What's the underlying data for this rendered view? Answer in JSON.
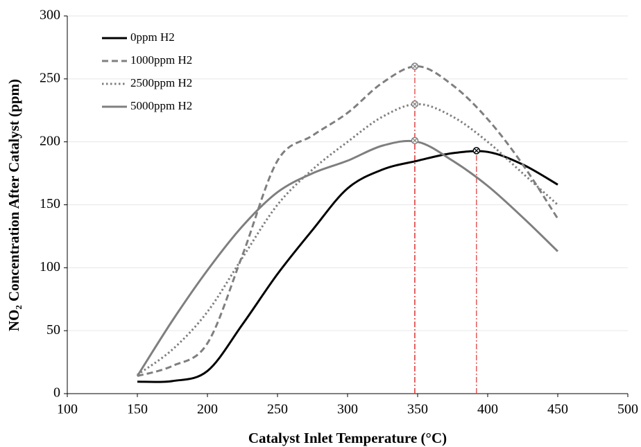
{
  "chart_data": {
    "type": "line",
    "xlabel": "Catalyst Inlet Temperature (°C)",
    "ylabel": "NO₂ Concentration After Catalyst (ppm)",
    "x": [
      150,
      175,
      200,
      225,
      250,
      275,
      300,
      325,
      350,
      375,
      400,
      425,
      450
    ],
    "series": [
      {
        "name": "0ppm H2",
        "color": "#000000",
        "dash": "solid",
        "values": [
          9.5,
          10,
          18,
          55,
          95,
          130,
          163,
          178,
          185,
          191,
          192,
          182,
          166
        ]
      },
      {
        "name": "1000ppm H2",
        "color": "#7f7f7f",
        "dash": "dashed",
        "values": [
          14,
          22,
          40,
          110,
          185,
          205,
          223,
          247,
          260,
          245,
          218,
          182,
          139
        ]
      },
      {
        "name": "2500ppm H2",
        "color": "#7f7f7f",
        "dash": "dotted",
        "values": [
          15,
          35,
          65,
          108,
          150,
          178,
          200,
          220,
          230,
          220,
          200,
          175,
          150
        ]
      },
      {
        "name": "5000ppm H2",
        "color": "#7f7f7f",
        "dash": "solid",
        "values": [
          14,
          58,
          98,
          133,
          160,
          175,
          185,
          197,
          200,
          185,
          165,
          140,
          113
        ]
      }
    ],
    "peaks": [
      {
        "x": 348,
        "y": 260,
        "color": "#7f7f7f"
      },
      {
        "x": 348,
        "y": 230,
        "color": "#7f7f7f"
      },
      {
        "x": 348,
        "y": 201,
        "color": "#7f7f7f"
      },
      {
        "x": 392,
        "y": 193,
        "color": "#000000"
      }
    ],
    "peak_line_color": "#e04040",
    "xlim": [
      100,
      500
    ],
    "xticks": [
      100,
      150,
      200,
      250,
      300,
      350,
      400,
      450,
      500
    ],
    "ylim": [
      0,
      300
    ],
    "yticks": [
      0,
      50,
      100,
      150,
      200,
      250,
      300
    ],
    "grid": true,
    "legend": "upper left"
  }
}
